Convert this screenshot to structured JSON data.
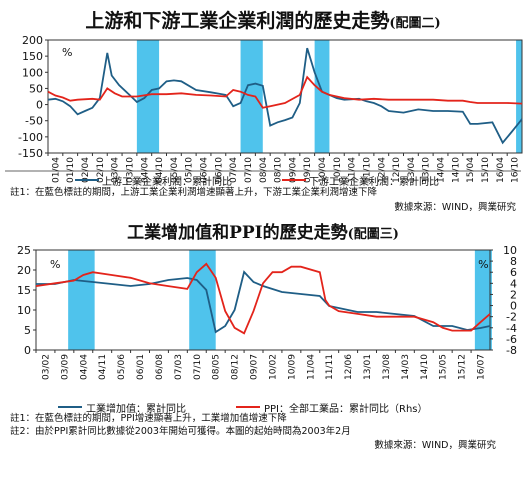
{
  "colors": {
    "blue": "#1f5e86",
    "red": "#e3241b",
    "shade": "#4fc3ec"
  },
  "chart_data": [
    {
      "type": "line",
      "title": "上游和下游工業企業利潤的歷史走勢",
      "title_suffix": "(配圖二)",
      "ylabel": "%",
      "ylim": [
        -150,
        200
      ],
      "yticks": [
        "200",
        "150",
        "100",
        "50",
        "0",
        "-50",
        "-100",
        "-150"
      ],
      "x_labels": [
        "01/04",
        "01/10",
        "02/04",
        "02/10",
        "03/04",
        "03/10",
        "04/04",
        "04/10",
        "05/04",
        "05/10",
        "06/04",
        "06/10",
        "07/04",
        "07/10",
        "08/04",
        "08/10",
        "09/04",
        "09/10",
        "10/04",
        "10/10",
        "11/04",
        "11/10",
        "12/04",
        "12/10",
        "13/04",
        "13/10",
        "14/04",
        "14/10",
        "15/04",
        "15/10",
        "16/04",
        "16/10"
      ],
      "shaded": [
        [
          6,
          7.5
        ],
        [
          13,
          14.5
        ],
        [
          18,
          19
        ],
        [
          31.6,
          32
        ]
      ],
      "series": [
        {
          "name": "上游工業企業利潤：累計同比",
          "color": "blue",
          "points": [
            [
              0,
              15
            ],
            [
              0.5,
              18
            ],
            [
              1,
              10
            ],
            [
              1.5,
              -5
            ],
            [
              2,
              -30
            ],
            [
              2.5,
              -20
            ],
            [
              3,
              -10
            ],
            [
              3.5,
              20
            ],
            [
              4,
              160
            ],
            [
              4.3,
              90
            ],
            [
              4.8,
              60
            ],
            [
              5.5,
              30
            ],
            [
              6,
              8
            ],
            [
              6.5,
              20
            ],
            [
              7,
              45
            ],
            [
              7.5,
              50
            ],
            [
              8,
              72
            ],
            [
              8.5,
              75
            ],
            [
              9,
              72
            ],
            [
              10,
              45
            ],
            [
              11,
              38
            ],
            [
              12,
              30
            ],
            [
              12.5,
              -5
            ],
            [
              13,
              5
            ],
            [
              13.5,
              60
            ],
            [
              14,
              65
            ],
            [
              14.5,
              58
            ],
            [
              15,
              -65
            ],
            [
              15.5,
              -55
            ],
            [
              16,
              -48
            ],
            [
              16.5,
              -40
            ],
            [
              17,
              5
            ],
            [
              17.5,
              175
            ],
            [
              18,
              100
            ],
            [
              18.5,
              40
            ],
            [
              19,
              30
            ],
            [
              19.5,
              20
            ],
            [
              20,
              15
            ],
            [
              21,
              18
            ],
            [
              21.5,
              10
            ],
            [
              22,
              5
            ],
            [
              22.5,
              -5
            ],
            [
              23,
              -20
            ],
            [
              24,
              -25
            ],
            [
              25,
              -15
            ],
            [
              26,
              -20
            ],
            [
              27,
              -20
            ],
            [
              28,
              -22
            ],
            [
              28.5,
              -60
            ],
            [
              29,
              -60
            ],
            [
              30,
              -55
            ],
            [
              30.7,
              -118
            ],
            [
              31.3,
              -85
            ],
            [
              32,
              -45
            ]
          ]
        },
        {
          "name": "下游工業企業利潤：累計同比",
          "color": "red",
          "points": [
            [
              0,
              40
            ],
            [
              0.5,
              28
            ],
            [
              1,
              22
            ],
            [
              1.5,
              12
            ],
            [
              2,
              15
            ],
            [
              3,
              18
            ],
            [
              3.5,
              15
            ],
            [
              4,
              50
            ],
            [
              4.5,
              35
            ],
            [
              5,
              25
            ],
            [
              6,
              25
            ],
            [
              7,
              32
            ],
            [
              8,
              32
            ],
            [
              9,
              35
            ],
            [
              10,
              30
            ],
            [
              11,
              28
            ],
            [
              12,
              25
            ],
            [
              12.5,
              45
            ],
            [
              13,
              40
            ],
            [
              13.5,
              30
            ],
            [
              14,
              25
            ],
            [
              14.5,
              -10
            ],
            [
              15,
              -5
            ],
            [
              16,
              5
            ],
            [
              17,
              30
            ],
            [
              17.5,
              85
            ],
            [
              18,
              60
            ],
            [
              18.5,
              40
            ],
            [
              19,
              30
            ],
            [
              19.5,
              25
            ],
            [
              20,
              20
            ],
            [
              21,
              15
            ],
            [
              22,
              18
            ],
            [
              23,
              15
            ],
            [
              24,
              15
            ],
            [
              25,
              15
            ],
            [
              26,
              15
            ],
            [
              27,
              12
            ],
            [
              28,
              12
            ],
            [
              28.5,
              8
            ],
            [
              29,
              5
            ],
            [
              30,
              5
            ],
            [
              31,
              5
            ],
            [
              32,
              3
            ]
          ]
        }
      ],
      "notes": [
        "註1：在藍色標註的期間，上游工業企業利潤增速顯著上升，下游工業企業利潤增速下降"
      ],
      "source": "數據來源：WIND，興業研究"
    },
    {
      "type": "line",
      "title": "工業增加值和PPI的歷史走勢",
      "title_suffix": "(配圖三)",
      "ylabel_left": "%",
      "ylabel_right": "%",
      "ylim_left": [
        0,
        25
      ],
      "ylim_right": [
        -8,
        10
      ],
      "yticks_left": [
        "25",
        "20",
        "15",
        "10",
        "5",
        "0"
      ],
      "yticks_right": [
        "10",
        "8",
        "6",
        "4",
        "2",
        "0",
        "-2",
        "-4",
        "-6",
        "-8"
      ],
      "x_labels": [
        "03/02",
        "03/09",
        "04/04",
        "04/11",
        "05/06",
        "06/01",
        "06/08",
        "07/03",
        "07/10",
        "08/05",
        "08/12",
        "09/07",
        "10/02",
        "10/09",
        "11/04",
        "11/11",
        "12/06",
        "13/01",
        "13/08",
        "14/03",
        "14/10",
        "15/05",
        "15/12",
        "16/07"
      ],
      "shaded": [
        [
          1.7,
          3.1
        ],
        [
          8.1,
          9.5
        ],
        [
          23.2,
          24.1
        ]
      ],
      "series": [
        {
          "name": "工業增加值：累計同比",
          "color": "blue",
          "axis": "left",
          "points": [
            [
              0,
              16.5
            ],
            [
              1,
              16.5
            ],
            [
              2,
              17.5
            ],
            [
              3,
              17
            ],
            [
              4,
              16.5
            ],
            [
              5,
              16
            ],
            [
              6,
              16.5
            ],
            [
              7,
              17.5
            ],
            [
              8,
              18
            ],
            [
              8.5,
              17.5
            ],
            [
              9,
              15
            ],
            [
              9.5,
              4.5
            ],
            [
              10,
              6
            ],
            [
              10.5,
              10
            ],
            [
              11,
              19.5
            ],
            [
              11.5,
              17
            ],
            [
              12,
              16
            ],
            [
              13,
              14.5
            ],
            [
              14,
              14
            ],
            [
              15,
              13.5
            ],
            [
              15.5,
              11
            ],
            [
              16,
              10.5
            ],
            [
              17,
              9.5
            ],
            [
              18,
              9.5
            ],
            [
              19,
              9
            ],
            [
              20,
              8.5
            ],
            [
              21,
              6
            ],
            [
              22,
              6
            ],
            [
              22.8,
              5
            ],
            [
              23.5,
              5.5
            ],
            [
              24,
              6
            ]
          ]
        },
        {
          "name": "PPI：全部工業品：累計同比（Rhs）",
          "color": "red",
          "axis": "right",
          "points": [
            [
              0,
              3.5
            ],
            [
              1,
              4
            ],
            [
              2,
              4.5
            ],
            [
              2.5,
              5.5
            ],
            [
              3,
              6
            ],
            [
              4,
              5.5
            ],
            [
              5,
              5
            ],
            [
              6,
              4
            ],
            [
              7,
              3.5
            ],
            [
              8,
              3
            ],
            [
              8.5,
              6
            ],
            [
              9,
              7.5
            ],
            [
              9.5,
              5
            ],
            [
              10,
              -1
            ],
            [
              10.5,
              -4
            ],
            [
              11,
              -5
            ],
            [
              11.5,
              -1
            ],
            [
              12,
              4
            ],
            [
              12.5,
              6
            ],
            [
              13,
              6
            ],
            [
              13.5,
              7
            ],
            [
              14,
              7
            ],
            [
              15,
              6
            ],
            [
              15.3,
              1
            ],
            [
              15.5,
              0
            ],
            [
              16,
              -1
            ],
            [
              17,
              -1.5
            ],
            [
              18,
              -2
            ],
            [
              19,
              -2
            ],
            [
              20,
              -2
            ],
            [
              21,
              -3
            ],
            [
              21.5,
              -4
            ],
            [
              22,
              -4.5
            ],
            [
              23,
              -4.5
            ],
            [
              23.5,
              -3
            ],
            [
              24,
              -1.5
            ]
          ]
        }
      ],
      "notes": [
        "註1：在藍色標註的期間，PPI增速顯著上升，工業增加值增速下降",
        "註2：由於PPI累計同比數據從2003年開始可獲得。本圖的起始時間為2003年2月"
      ],
      "source": "數據來源：WIND，興業研究"
    }
  ]
}
